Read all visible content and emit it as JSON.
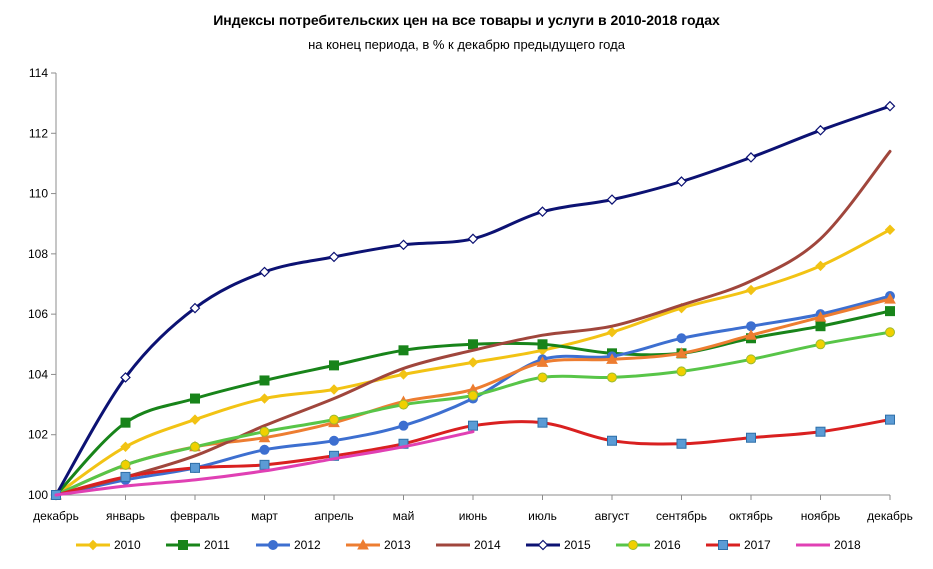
{
  "chart_data": {
    "type": "line",
    "title": "Индексы потребительских цен на все товары и услуги в 2010-2018 годах",
    "subtitle": "на конец периода, в % к декабрю предыдущего года",
    "xlabel": "",
    "ylabel": "",
    "categories": [
      "декабрь",
      "январь",
      "февраль",
      "март",
      "апрель",
      "май",
      "июнь",
      "июль",
      "август",
      "сентябрь",
      "октябрь",
      "ноябрь",
      "декабрь"
    ],
    "ylim": [
      100,
      114
    ],
    "yticks": [
      100,
      102,
      104,
      106,
      108,
      110,
      112,
      114
    ],
    "grid": false,
    "legend_position": "bottom",
    "series": [
      {
        "name": "2010",
        "color": "#F2C314",
        "marker": "diamond",
        "show_markers": true,
        "values": [
          100,
          101.6,
          102.5,
          103.2,
          103.5,
          104.0,
          104.4,
          104.8,
          105.4,
          106.2,
          106.8,
          107.6,
          108.8
        ]
      },
      {
        "name": "2011",
        "color": "#18841A",
        "marker": "square",
        "show_markers": true,
        "values": [
          100,
          102.4,
          103.2,
          103.8,
          104.3,
          104.8,
          105.0,
          105.0,
          104.7,
          104.7,
          105.2,
          105.6,
          106.1
        ]
      },
      {
        "name": "2012",
        "color": "#3D6FD0",
        "marker": "circle",
        "show_markers": true,
        "values": [
          100,
          100.5,
          100.9,
          101.5,
          101.8,
          102.3,
          103.2,
          104.5,
          104.6,
          105.2,
          105.6,
          106.0,
          106.6
        ]
      },
      {
        "name": "2013",
        "color": "#ED7D31",
        "marker": "triangle",
        "show_markers": true,
        "values": [
          100,
          101.0,
          101.6,
          101.9,
          102.4,
          103.1,
          103.5,
          104.4,
          104.5,
          104.7,
          105.3,
          105.9,
          106.5
        ]
      },
      {
        "name": "2014",
        "color": "#A0463C",
        "marker": "none",
        "show_markers": false,
        "values": [
          100,
          100.6,
          101.3,
          102.3,
          103.2,
          104.2,
          104.8,
          105.3,
          105.6,
          106.3,
          107.1,
          108.5,
          111.4
        ]
      },
      {
        "name": "2015",
        "color": "#0C1273",
        "marker": "diamond-open",
        "show_markers": true,
        "values": [
          100,
          103.9,
          106.2,
          107.4,
          107.9,
          108.3,
          108.5,
          109.4,
          109.8,
          110.4,
          111.2,
          112.1,
          112.9
        ]
      },
      {
        "name": "2016",
        "color": "#58C548",
        "marker": "circle-yellow",
        "show_markers": true,
        "values": [
          100,
          101.0,
          101.6,
          102.1,
          102.5,
          103.0,
          103.3,
          103.9,
          103.9,
          104.1,
          104.5,
          105.0,
          105.4
        ]
      },
      {
        "name": "2017",
        "color": "#D92020",
        "marker": "square-blue",
        "show_markers": true,
        "values": [
          100,
          100.6,
          100.9,
          101.0,
          101.3,
          101.7,
          102.3,
          102.4,
          101.8,
          101.7,
          101.9,
          102.1,
          102.5
        ]
      },
      {
        "name": "2018",
        "color": "#E040B4",
        "marker": "none",
        "show_markers": false,
        "values": [
          100,
          100.3,
          100.5,
          100.8,
          101.2,
          101.6,
          102.1,
          null,
          null,
          null,
          null,
          null,
          null
        ]
      }
    ]
  }
}
